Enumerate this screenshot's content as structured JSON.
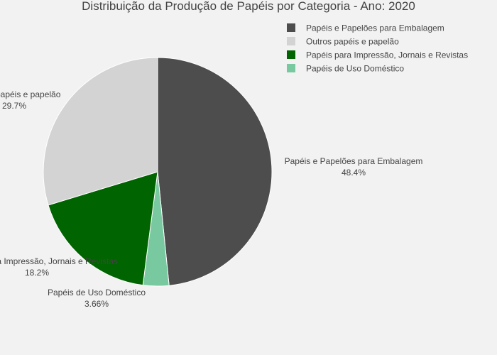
{
  "chart_data": {
    "type": "pie",
    "title": "Distribuição da Produção de Papéis por Categoria - Ano: 2020",
    "slices": [
      {
        "label": "Papéis e Papelões para Embalagem",
        "pct_text": "48.4%",
        "value": 48.4,
        "color": "#4d4d4d"
      },
      {
        "label": "Papéis de Uso Doméstico",
        "pct_text": "3.66%",
        "value": 3.66,
        "color": "#79c9a0"
      },
      {
        "label": "Papéis para Impressão, Jornais e Revistas",
        "pct_text": "18.2%",
        "value": 18.24,
        "color": "#006400"
      },
      {
        "label": "Outros papéis e papelão",
        "pct_text": "29.7%",
        "value": 29.7,
        "color": "#d3d3d3"
      }
    ],
    "legend": {
      "position": "top-right",
      "entries": [
        {
          "label": "Papéis e Papelões para Embalagem",
          "color": "#4d4d4d"
        },
        {
          "label": "Outros papéis e papelão",
          "color": "#d3d3d3"
        },
        {
          "label": "Papéis para Impressão, Jornais e Revistas",
          "color": "#006400"
        },
        {
          "label": "Papéis de Uso Doméstico",
          "color": "#79c9a0"
        }
      ]
    }
  }
}
